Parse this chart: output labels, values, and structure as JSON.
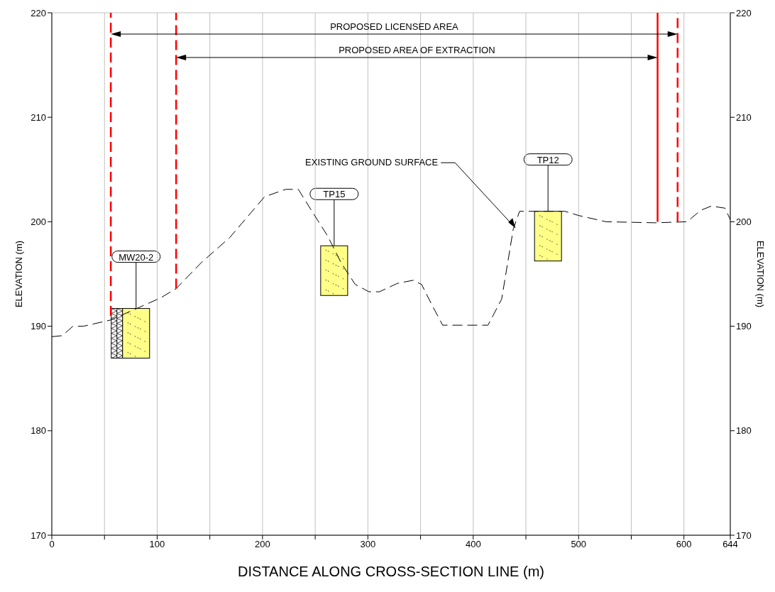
{
  "chart_data": {
    "type": "line",
    "xlabel": "DISTANCE ALONG CROSS-SECTION LINE (m)",
    "ylabel": "ELEVATION (m)",
    "y2label": "ELEVATION (m)",
    "xlim": [
      0,
      644
    ],
    "xticks": [
      0,
      {
        "value": 50,
        "label": null
      },
      100,
      {
        "value": 150,
        "label": null
      },
      200,
      {
        "value": 250,
        "label": null
      },
      300,
      {
        "value": 350,
        "label": null
      },
      400,
      {
        "value": 450,
        "label": null
      },
      500,
      {
        "value": 550,
        "label": null
      },
      600,
      644
    ],
    "ylim": [
      170,
      220
    ],
    "yticks": [
      170,
      180,
      190,
      200,
      210,
      220
    ],
    "y2lim": [
      170,
      220
    ],
    "y2ticks": [
      170,
      180,
      190,
      200,
      210,
      220
    ],
    "grid": true,
    "series": [
      {
        "color": "#000000",
        "line_style": "dashed",
        "x": [
          0,
          10,
          20,
          30,
          56,
          103,
          118,
          142,
          169,
          202,
          222,
          234,
          242,
          262,
          275,
          288,
          301,
          311,
          328,
          343,
          351,
          361,
          371,
          414,
          427,
          438,
          444,
          454,
          487,
          500,
          526,
          573,
          603,
          616,
          626,
          639,
          644
        ],
        "values": [
          189.0,
          189.1,
          190.0,
          190.0,
          190.6,
          192.7,
          193.6,
          196.1,
          198.5,
          202.4,
          203.1,
          203.1,
          201.8,
          198.6,
          196.0,
          194.0,
          193.3,
          193.3,
          194.1,
          194.4,
          194.0,
          192.0,
          190.1,
          190.1,
          192.6,
          199.3,
          201.0,
          201.0,
          201.0,
          200.6,
          200.0,
          199.9,
          200.0,
          201.1,
          201.5,
          201.3,
          200.2
        ]
      },
      {
        "color": "#ff0000",
        "line_style": "dashed",
        "x": [
          56,
          56
        ],
        "values": [
          191,
          220
        ]
      },
      {
        "color": "#ff0000",
        "line_style": "dashed",
        "x": [
          118,
          118
        ],
        "values": [
          193.6,
          220
        ]
      },
      {
        "color": "#ff0000",
        "line_style": "solid",
        "x": [
          575,
          575
        ],
        "values": [
          200,
          220
        ]
      },
      {
        "color": "#ff0000",
        "line_style": "dashed",
        "x": [
          594,
          594
        ],
        "values": [
          200,
          220
        ]
      }
    ],
    "annotations": [
      "PROPOSED LICENSED AREA",
      "PROPOSED AREA OF EXTRACTION",
      {
        "text": "EXISTING GROUND SURFACE",
        "x": 440,
        "y": 199.4
      },
      {
        "text": "MW20-2",
        "x": 80,
        "y": 191.7
      },
      {
        "text": "TP15",
        "x": 268,
        "y": 197.7
      },
      {
        "text": "TP12",
        "x": 471,
        "y": 201.0
      }
    ]
  }
}
